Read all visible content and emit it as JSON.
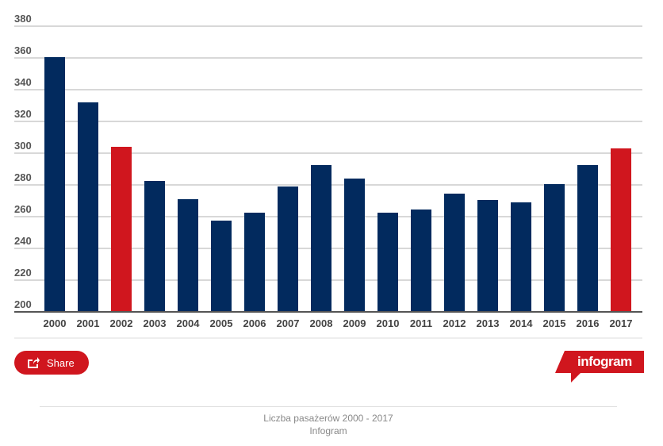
{
  "chart_data": {
    "type": "bar",
    "title": "Liczba pasażerów 2000 - 2017",
    "xlabel": "",
    "ylabel": "",
    "ylim": [
      200,
      380
    ],
    "yticks": [
      "200",
      "220",
      "240",
      "260",
      "280",
      "300",
      "320",
      "340",
      "360",
      "380"
    ],
    "categories": [
      "2000",
      "2001",
      "2002",
      "2003",
      "2004",
      "2005",
      "2006",
      "2007",
      "2008",
      "2009",
      "2010",
      "2011",
      "2012",
      "2013",
      "2014",
      "2015",
      "2016",
      "2017"
    ],
    "values": [
      360.5,
      332,
      304,
      282.5,
      271,
      257.5,
      262.5,
      279,
      292.5,
      284,
      262.5,
      264.5,
      274.5,
      270.5,
      269,
      280.5,
      292.5,
      303
    ],
    "highlighted": [
      "2002",
      "2017"
    ],
    "grid": true,
    "colors": {
      "default": "#022a5e",
      "highlight": "#d0161e"
    }
  },
  "share": {
    "label": "Share",
    "icon": "share-icon"
  },
  "logo": {
    "text": "infogram"
  },
  "caption": {
    "title": "Liczba pasażerów 2000 - 2017",
    "source": "Infogram"
  }
}
